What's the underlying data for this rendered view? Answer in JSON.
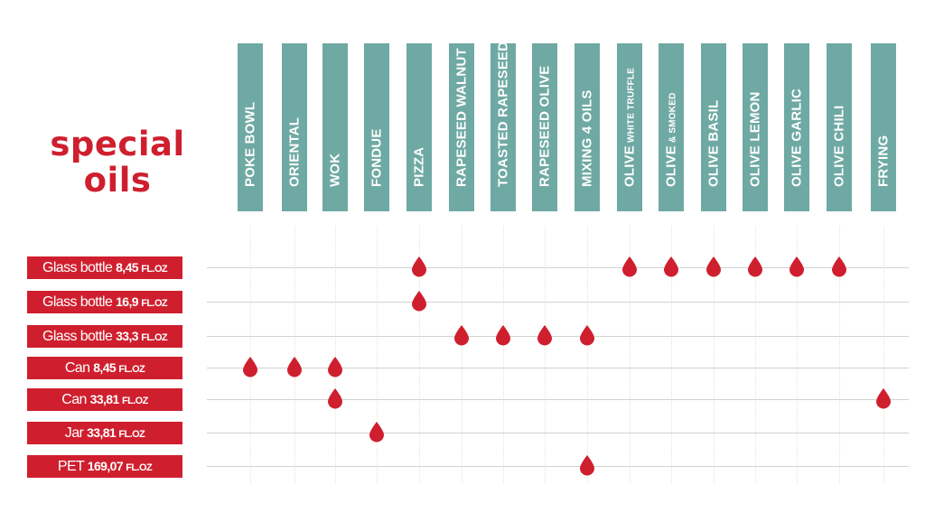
{
  "brand": {
    "line1": "special",
    "line2": "oils"
  },
  "oils": [
    {
      "label": "POKE BOWL"
    },
    {
      "label": "ORIENTAL"
    },
    {
      "label": "WOK"
    },
    {
      "label": "FONDUE"
    },
    {
      "label": "PIZZA"
    },
    {
      "label": "RAPESEED WALNUT"
    },
    {
      "label": "TOASTED RAPESEED"
    },
    {
      "label": "RAPESEED OLIVE"
    },
    {
      "label": "MIXING 4 OILS"
    },
    {
      "label": "OLIVE",
      "small": "WHITE TRUFFLE"
    },
    {
      "label": "OLIVE",
      "small": "& SMOKED"
    },
    {
      "label": "OLIVE BASIL"
    },
    {
      "label": "OLIVE LEMON"
    },
    {
      "label": "OLIVE  GARLIC"
    },
    {
      "label": "OLIVE  CHILI"
    },
    {
      "label": "FRYING"
    }
  ],
  "packages": [
    {
      "name": "Glass bottle",
      "volume": "8,45",
      "unit": "FL.OZ"
    },
    {
      "name": "Glass bottle",
      "volume": "16,9",
      "unit": "FL.OZ"
    },
    {
      "name": "Glass bottle",
      "volume": "33,3",
      "unit": "FL.OZ"
    },
    {
      "name": "Can",
      "volume": "8,45",
      "unit": "FL.OZ"
    },
    {
      "name": "Can",
      "volume": "33,81",
      "unit": "FL.OZ"
    },
    {
      "name": "Jar",
      "volume": "33,81",
      "unit": "FL.OZ"
    },
    {
      "name": "PET",
      "volume": "169,07",
      "unit": "FL.OZ"
    }
  ],
  "availability": [
    {
      "package": 0,
      "oils": [
        4,
        9,
        10,
        11,
        12,
        13,
        14
      ]
    },
    {
      "package": 1,
      "oils": [
        4
      ]
    },
    {
      "package": 2,
      "oils": [
        5,
        6,
        7,
        8
      ]
    },
    {
      "package": 3,
      "oils": [
        0,
        1,
        2
      ]
    },
    {
      "package": 4,
      "oils": [
        2,
        15
      ]
    },
    {
      "package": 5,
      "oils": [
        3
      ]
    },
    {
      "package": 6,
      "oils": [
        8
      ]
    }
  ],
  "colors": {
    "brand_red": "#cf1f2e",
    "header_teal": "#6fa9a3",
    "drop_red": "#cf1f2e"
  },
  "icons": {
    "marker": "droplet-icon"
  }
}
